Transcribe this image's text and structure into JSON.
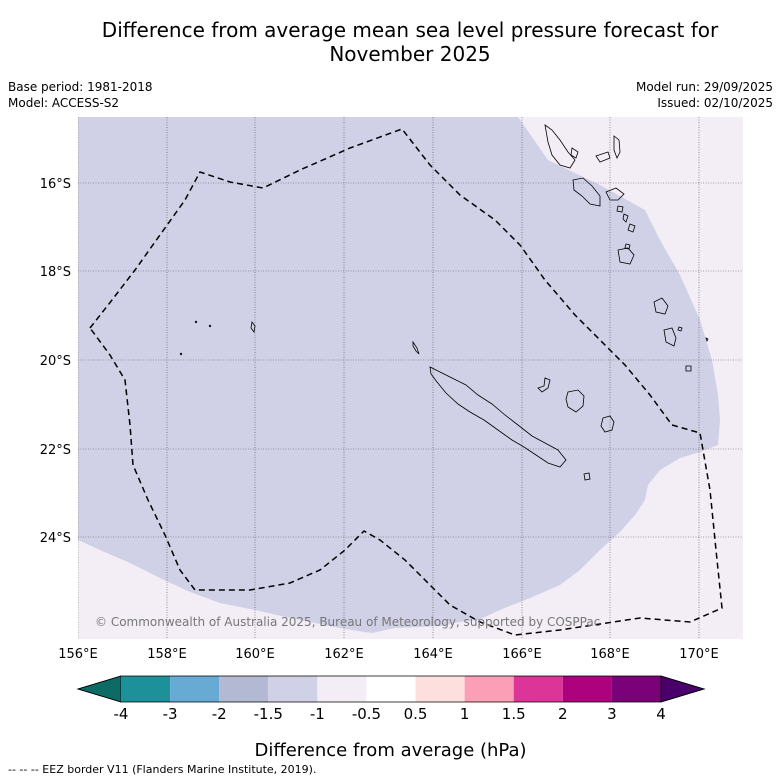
{
  "title": {
    "line1": "Difference from average mean sea level pressure forecast for",
    "line2": "November 2025"
  },
  "meta": {
    "base_period": "Base period: 1981-2018",
    "model": "Model: ACCESS-S2",
    "model_run": "Model run: 29/09/2025",
    "issued": "Issued: 02/10/2025"
  },
  "map": {
    "lon_ticks": [
      "156°E",
      "158°E",
      "160°E",
      "162°E",
      "164°E",
      "166°E",
      "168°E",
      "170°E"
    ],
    "lat_ticks": [
      "16°S",
      "18°S",
      "20°S",
      "22°S",
      "24°S"
    ],
    "copyright": "© Commonwealth of Australia 2025, Bureau of Meteorology, supported by COSPPac",
    "region_colors": {
      "light_negative": "#d0d1e6",
      "near_zero": "#f3edf6",
      "grid": "#555555"
    }
  },
  "colorbar": {
    "ticks": [
      "-4",
      "-3",
      "-2",
      "-1.5",
      "-1",
      "-0.5",
      "0.5",
      "1",
      "1.5",
      "2",
      "3",
      "4"
    ],
    "colors": [
      "#0c6b65",
      "#1c9199",
      "#67aad4",
      "#b3b8d3",
      "#d0d1e6",
      "#f3edf6",
      "#ffffff",
      "#fde0dd",
      "#fa9fb5",
      "#dd3497",
      "#ae017e",
      "#7a0177",
      "#49006a"
    ],
    "label": "Difference from average (hPa)"
  },
  "footnote": "--  --  -- EEZ border V11 (Flanders Marine Institute, 2019)."
}
